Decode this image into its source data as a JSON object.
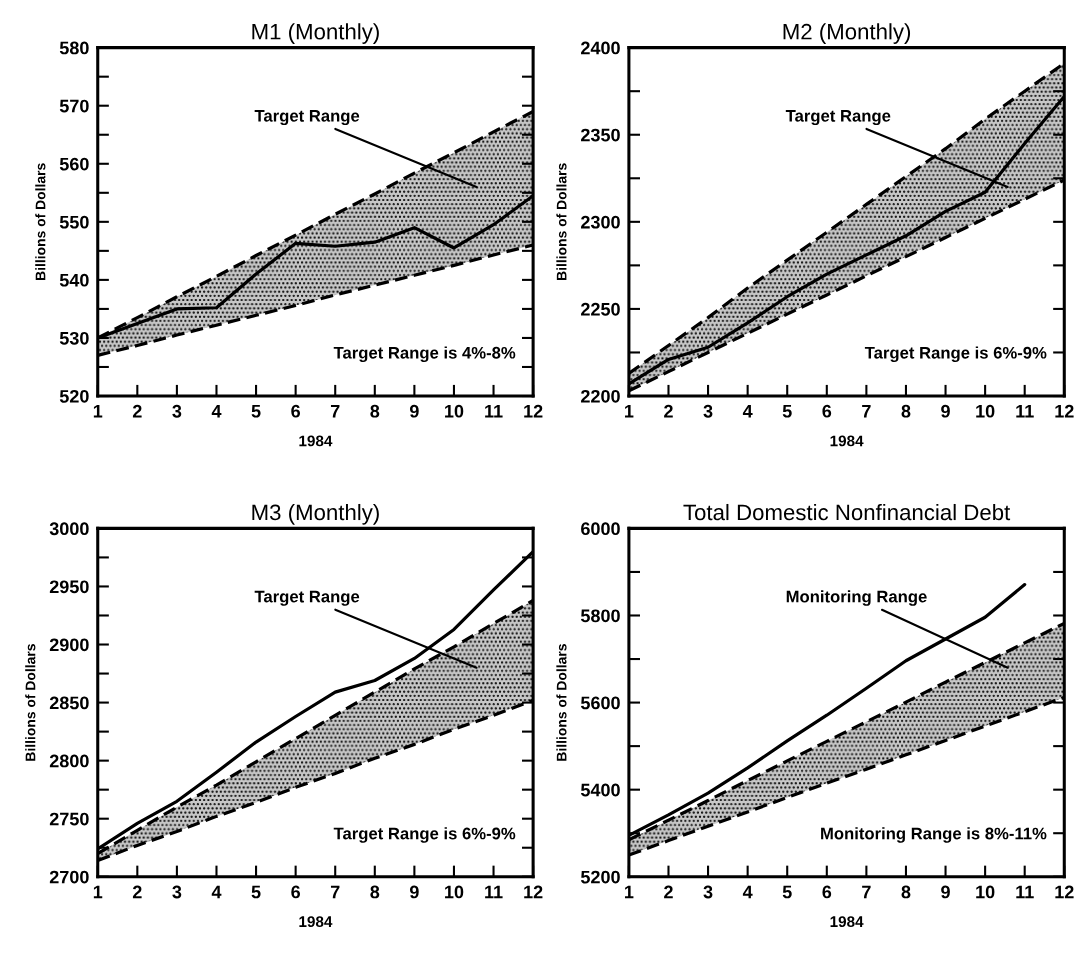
{
  "chart_data": [
    {
      "type": "line",
      "title": "M1 (Monthly)",
      "xlabel": "1984",
      "ylabel": "Billions of Dollars",
      "x": [
        1,
        2,
        3,
        4,
        5,
        6,
        7,
        8,
        9,
        10,
        11,
        12
      ],
      "xlim": [
        1,
        12
      ],
      "xticks": [
        1,
        2,
        3,
        4,
        5,
        6,
        7,
        8,
        9,
        10,
        11,
        12
      ],
      "ylim": [
        520,
        580
      ],
      "yticks": [
        520,
        {
          "value": 525,
          "label": null
        },
        530,
        {
          "value": 535,
          "label": null
        },
        540,
        {
          "value": 545,
          "label": null
        },
        550,
        {
          "value": 555,
          "label": null
        },
        560,
        {
          "value": 565,
          "label": null
        },
        570,
        {
          "value": 575,
          "label": null
        },
        580
      ],
      "series": [
        {
          "color": "#000000",
          "values": [
            530,
            532.5,
            535,
            535.2,
            541,
            546.3,
            545.8,
            546.5,
            549,
            545.5,
            549.5,
            554.5
          ],
          "lower": [
            527,
            528.7,
            530.5,
            532.2,
            533.9,
            535.6,
            537.4,
            539.1,
            540.8,
            542.5,
            544.3,
            546
          ],
          "upper": [
            530,
            533.5,
            537.1,
            540.6,
            544.2,
            547.7,
            551.3,
            554.8,
            558.4,
            561.9,
            565.5,
            569
          ]
        },
        {
          "color": "#000000",
          "line_style": "dashed",
          "values": [
            530,
            533.5,
            537.1,
            540.6,
            544.2,
            547.7,
            551.3,
            554.8,
            558.4,
            561.9,
            565.5,
            569
          ]
        },
        {
          "color": "#000000",
          "line_style": "dashed",
          "values": [
            527,
            528.7,
            530.5,
            532.2,
            533.9,
            535.6,
            537.4,
            539.1,
            540.8,
            542.5,
            544.3,
            546
          ]
        }
      ],
      "annotations": [
        "Target Range",
        "Target Range is 4%-8%"
      ],
      "grid": false
    },
    {
      "type": "line",
      "title": "M2 (Monthly)",
      "xlabel": "1984",
      "ylabel": "Billions of Dollars",
      "x": [
        1,
        2,
        3,
        4,
        5,
        6,
        7,
        8,
        9,
        10,
        11,
        12
      ],
      "xlim": [
        1,
        12
      ],
      "xticks": [
        1,
        2,
        3,
        4,
        5,
        6,
        7,
        8,
        9,
        10,
        11,
        12
      ],
      "ylim": [
        2200,
        2400
      ],
      "yticks": [
        2200,
        {
          "value": 2225,
          "label": null
        },
        2250,
        {
          "value": 2275,
          "label": null
        },
        2300,
        {
          "value": 2325,
          "label": null
        },
        2350,
        {
          "value": 2375,
          "label": null
        },
        2400
      ],
      "series": [
        {
          "color": "#000000",
          "values": [
            2207,
            2221,
            2228,
            2242,
            2257,
            2270,
            2281,
            2292,
            2306,
            2317,
            2345,
            2372
          ],
          "lower": [
            2203,
            2214,
            2225,
            2236,
            2247,
            2258,
            2269,
            2280,
            2291,
            2302,
            2313,
            2324
          ],
          "upper": [
            2213,
            2229,
            2245,
            2262,
            2278,
            2294,
            2310,
            2326,
            2342,
            2359,
            2375,
            2391
          ]
        },
        {
          "color": "#000000",
          "line_style": "dashed",
          "values": [
            2213,
            2229,
            2245,
            2262,
            2278,
            2294,
            2310,
            2326,
            2342,
            2359,
            2375,
            2391
          ]
        },
        {
          "color": "#000000",
          "line_style": "dashed",
          "values": [
            2203,
            2214,
            2225,
            2236,
            2247,
            2258,
            2269,
            2280,
            2291,
            2302,
            2313,
            2324
          ]
        }
      ],
      "annotations": [
        "Target Range",
        "Target Range is 6%-9%"
      ],
      "grid": false
    },
    {
      "type": "line",
      "title": "M3 (Monthly)",
      "xlabel": "1984",
      "ylabel": "Billions of Dollars",
      "x": [
        1,
        2,
        3,
        4,
        5,
        6,
        7,
        8,
        9,
        10,
        11,
        12
      ],
      "xlim": [
        1,
        12
      ],
      "xticks": [
        1,
        2,
        3,
        4,
        5,
        6,
        7,
        8,
        9,
        10,
        11,
        12
      ],
      "ylim": [
        2700,
        3000
      ],
      "yticks": [
        2700,
        {
          "value": 2725,
          "label": null
        },
        2750,
        {
          "value": 2775,
          "label": null
        },
        2800,
        {
          "value": 2825,
          "label": null
        },
        2850,
        {
          "value": 2875,
          "label": null
        },
        2900,
        {
          "value": 2925,
          "label": null
        },
        2950,
        {
          "value": 2975,
          "label": null
        },
        3000
      ],
      "series": [
        {
          "color": "#000000",
          "values": [
            2724,
            2746,
            2765,
            2790,
            2816,
            2838,
            2859,
            2869,
            2888,
            2913,
            2947,
            2980
          ],
          "lower": [
            2714,
            2727,
            2739,
            2752,
            2764,
            2777,
            2789,
            2802,
            2814,
            2827,
            2839,
            2852
          ],
          "upper": [
            2720,
            2740,
            2760,
            2779,
            2799,
            2819,
            2839,
            2859,
            2879,
            2898,
            2918,
            2938
          ]
        },
        {
          "color": "#000000",
          "line_style": "dashed",
          "values": [
            2720,
            2740,
            2760,
            2779,
            2799,
            2819,
            2839,
            2859,
            2879,
            2898,
            2918,
            2938
          ]
        },
        {
          "color": "#000000",
          "line_style": "dashed",
          "values": [
            2714,
            2727,
            2739,
            2752,
            2764,
            2777,
            2789,
            2802,
            2814,
            2827,
            2839,
            2852
          ]
        }
      ],
      "annotations": [
        "Target Range",
        "Target Range is 6%-9%"
      ],
      "grid": false
    },
    {
      "type": "line",
      "title": "Total Domestic Nonfinancial Debt",
      "xlabel": "1984",
      "ylabel": "Billions of Dollars",
      "x": [
        1,
        2,
        3,
        4,
        5,
        6,
        7,
        8,
        9,
        10,
        11,
        12
      ],
      "xlim": [
        1,
        12
      ],
      "xticks": [
        1,
        2,
        3,
        4,
        5,
        6,
        7,
        8,
        9,
        10,
        11,
        12
      ],
      "ylim": [
        5200,
        6000
      ],
      "yticks": [
        5200,
        {
          "value": 5300,
          "label": null
        },
        5400,
        {
          "value": 5500,
          "label": null
        },
        5600,
        {
          "value": 5700,
          "label": null
        },
        5800,
        {
          "value": 5900,
          "label": null
        },
        6000
      ],
      "series": [
        {
          "color": "#000000",
          "values": [
            5295,
            5342,
            5392,
            5450,
            5512,
            5571,
            5633,
            5696,
            5746,
            5796,
            5871,
            null
          ],
          "lower": [
            5250,
            5283,
            5316,
            5349,
            5382,
            5415,
            5447,
            5480,
            5513,
            5546,
            5579,
            5612
          ],
          "upper": [
            5285,
            5330,
            5375,
            5421,
            5466,
            5511,
            5556,
            5601,
            5647,
            5692,
            5737,
            5782
          ]
        },
        {
          "color": "#000000",
          "line_style": "dashed",
          "values": [
            5285,
            5330,
            5375,
            5421,
            5466,
            5511,
            5556,
            5601,
            5647,
            5692,
            5737,
            5782
          ]
        },
        {
          "color": "#000000",
          "line_style": "dashed",
          "values": [
            5250,
            5283,
            5316,
            5349,
            5382,
            5415,
            5447,
            5480,
            5513,
            5546,
            5579,
            5612
          ]
        }
      ],
      "annotations": [
        "Monitoring Range",
        "Monitoring Range is 8%-11%"
      ],
      "grid": false
    }
  ]
}
